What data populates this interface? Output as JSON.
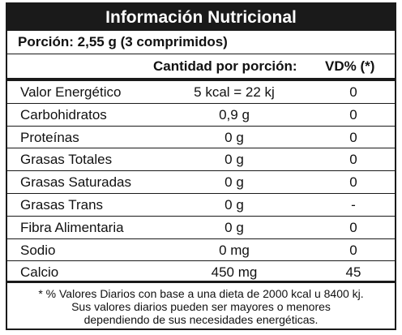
{
  "title": "Información Nutricional",
  "portion": "Porción: 2,55 g (3 comprimidos)",
  "headers": {
    "amount": "Cantidad por porción:",
    "dv": "VD% (*)"
  },
  "rows": [
    {
      "name": "Valor Energético",
      "amount": "5 kcal = 22 kj",
      "dv": "0"
    },
    {
      "name": "Carbohidratos",
      "amount": "0,9 g",
      "dv": "0"
    },
    {
      "name": "Proteínas",
      "amount": "0 g",
      "dv": "0"
    },
    {
      "name": "Grasas Totales",
      "amount": "0 g",
      "dv": "0"
    },
    {
      "name": "Grasas Saturadas",
      "amount": "0 g",
      "dv": "0"
    },
    {
      "name": "Grasas Trans",
      "amount": "0 g",
      "dv": "-"
    },
    {
      "name": "Fibra Alimentaria",
      "amount": "0 g",
      "dv": "0"
    },
    {
      "name": "Sodio",
      "amount": "0 mg",
      "dv": "0"
    },
    {
      "name": "Calcio",
      "amount": "450 mg",
      "dv": "45"
    }
  ],
  "footnote": [
    "* % Valores Diarios con base a una dieta de 2000 kcal u 8400 kj.",
    "Sus valores diarios pueden ser mayores o menores",
    "dependiendo de sus necesidades energéticas."
  ]
}
